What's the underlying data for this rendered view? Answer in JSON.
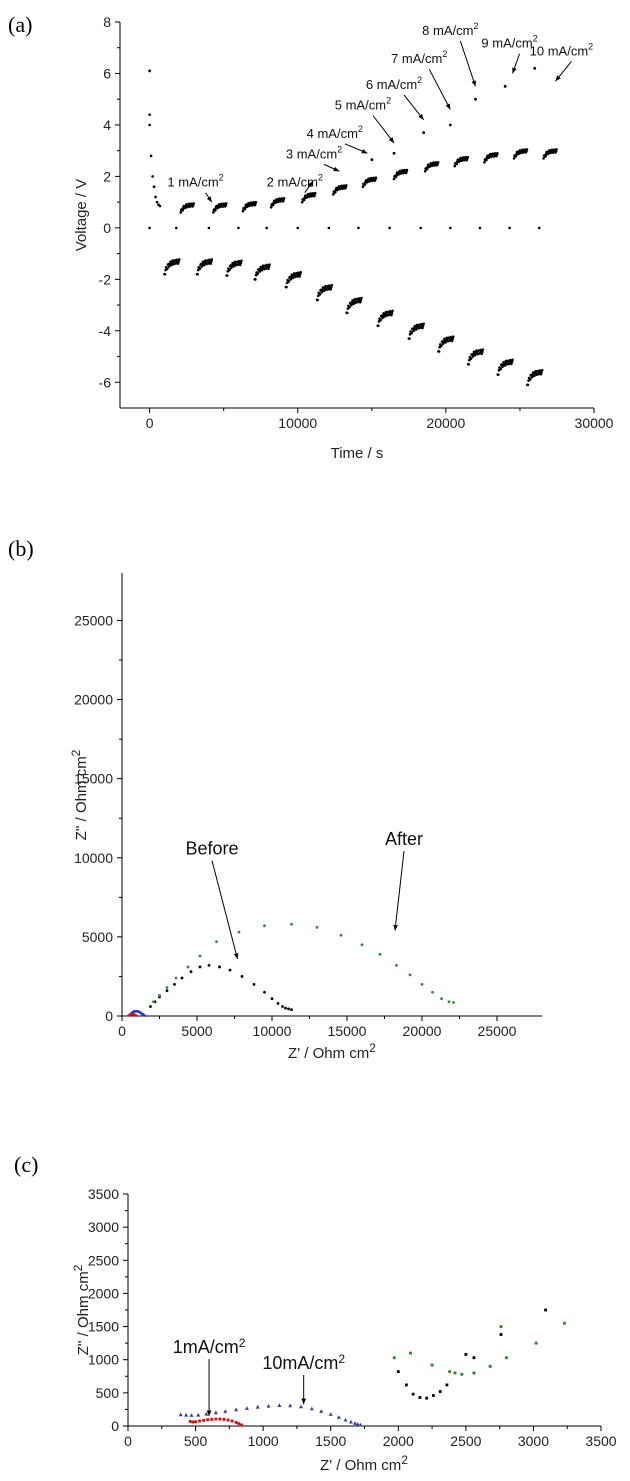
{
  "chart_data": [
    {
      "type": "scatter",
      "panel_label": "(a)",
      "xlabel": "Time / s",
      "ylabel": "Voltage / V",
      "xlim": [
        -2000,
        30000
      ],
      "ylim": [
        -7,
        8
      ],
      "xticks": [
        0,
        10000,
        20000,
        30000
      ],
      "yticks": [
        -6,
        -4,
        -2,
        0,
        2,
        4,
        6,
        8
      ],
      "grid": false,
      "color": "#000000",
      "steps": [
        {
          "label": "1 mA/cm",
          "start": 1000,
          "pos": 0.9,
          "neg": -1.3
        },
        {
          "label": "2 mA/cm",
          "start": 3200,
          "pos": 0.9,
          "neg": -1.3
        },
        {
          "label": "3 mA/cm",
          "start": 5200,
          "pos": 0.95,
          "neg": -1.35
        },
        {
          "label": "4 mA/cm",
          "start": 7100,
          "pos": 1.1,
          "neg": -1.5
        },
        {
          "label": "5 mA/cm",
          "start": 9200,
          "pos": 1.3,
          "neg": -1.8
        },
        {
          "label": "6 mA/cm",
          "start": 11300,
          "pos": 1.6,
          "neg": -2.3
        },
        {
          "label": "7 mA/cm",
          "start": 13300,
          "pos": 1.9,
          "neg": -2.8
        },
        {
          "label": "8 mA/cm",
          "start": 15400,
          "pos": 2.2,
          "neg": -3.3
        },
        {
          "label": "9 mA/cm",
          "start": 17500,
          "pos": 2.5,
          "neg": -3.8
        },
        {
          "label": "10 mA/cm",
          "start": 19500,
          "pos": 2.7,
          "neg": -4.3
        },
        {
          "label": "",
          "start": 21500,
          "pos": 2.85,
          "neg": -4.8
        },
        {
          "label": "",
          "start": 23500,
          "pos": 3.0,
          "neg": -5.2
        },
        {
          "label": "",
          "start": 25500,
          "pos": 3.0,
          "neg": -5.6
        }
      ],
      "peaks": [
        {
          "x": 0,
          "y": 6.1
        },
        {
          "x": 15000,
          "y": 2.65
        },
        {
          "x": 16500,
          "y": 2.9
        },
        {
          "x": 18500,
          "y": 3.7
        },
        {
          "x": 20300,
          "y": 4.0
        },
        {
          "x": 22000,
          "y": 5.0
        },
        {
          "x": 24000,
          "y": 5.5
        },
        {
          "x": 26000,
          "y": 6.2
        }
      ],
      "annotations": [
        {
          "text": "1 mA/cm",
          "x": 3100,
          "y": 1.6,
          "ax": 4200,
          "ay": 1.0
        },
        {
          "text": "2 mA/cm",
          "x": 9800,
          "y": 1.6,
          "ax": 11000,
          "ay": 1.8
        },
        {
          "text": "3 mA/cm",
          "x": 11100,
          "y": 2.7,
          "ax": 12800,
          "ay": 2.2
        },
        {
          "text": "4 mA/cm",
          "x": 12500,
          "y": 3.5,
          "ax": 14700,
          "ay": 2.9
        },
        {
          "text": "5 mA/cm",
          "x": 14400,
          "y": 4.6,
          "ax": 16500,
          "ay": 3.3
        },
        {
          "text": "6 mA/cm",
          "x": 16500,
          "y": 5.4,
          "ax": 18500,
          "ay": 4.2
        },
        {
          "text": "7 mA/cm",
          "x": 18200,
          "y": 6.4,
          "ax": 20300,
          "ay": 4.6
        },
        {
          "text": "8 mA/cm",
          "x": 20300,
          "y": 7.5,
          "ax": 22000,
          "ay": 5.5
        },
        {
          "text": "9 mA/cm",
          "x": 24300,
          "y": 7.0,
          "ax": 24500,
          "ay": 6.0
        },
        {
          "text": "10 mA/cm",
          "x": 27800,
          "y": 6.7,
          "ax": 27400,
          "ay": 5.7
        }
      ]
    },
    {
      "type": "scatter",
      "panel_label": "(b)",
      "xlabel": "Z' / Ohm cm",
      "ylabel": "Z'' / Ohm cm",
      "xlim": [
        0,
        28000
      ],
      "ylim": [
        0,
        28000
      ],
      "xticks": [
        0,
        5000,
        10000,
        15000,
        20000,
        25000
      ],
      "yticks": [
        0,
        5000,
        10000,
        15000,
        20000,
        25000
      ],
      "grid": false,
      "series": [
        {
          "name": "",
          "color": "#000000",
          "x": [
            1900,
            2200,
            2500,
            3000,
            3500,
            4000,
            4600,
            5200,
            5800,
            6500,
            7200,
            8000,
            8800,
            9500,
            10000,
            10400,
            10700,
            10900,
            11100,
            11300
          ],
          "y": [
            600,
            900,
            1200,
            1600,
            2000,
            2400,
            2800,
            3100,
            3200,
            3100,
            2900,
            2500,
            2000,
            1500,
            1100,
            800,
            600,
            500,
            450,
            400
          ]
        },
        {
          "name": "",
          "color": "#2e8b2e",
          "x": [
            2100,
            2500,
            3000,
            3600,
            4400,
            5200,
            6300,
            7800,
            9500,
            11300,
            13000,
            14600,
            16000,
            17200,
            18300,
            19200,
            20000,
            20700,
            21300,
            21800,
            22100
          ],
          "y": [
            900,
            1300,
            1800,
            2400,
            3100,
            3800,
            4700,
            5300,
            5700,
            5800,
            5600,
            5100,
            4500,
            3900,
            3200,
            2600,
            2000,
            1500,
            1100,
            900,
            850
          ]
        },
        {
          "name": "",
          "color": "#2040c0",
          "x": [
            500,
            600,
            700,
            800,
            900,
            1000,
            1100,
            1200,
            1300,
            1400,
            1500
          ],
          "y": [
            50,
            150,
            230,
            280,
            300,
            300,
            280,
            230,
            160,
            90,
            30
          ]
        },
        {
          "name": "",
          "color": "#e01010",
          "x": [
            450,
            550,
            650,
            750,
            850,
            950
          ],
          "y": [
            40,
            80,
            110,
            110,
            80,
            30
          ]
        }
      ],
      "annotations": [
        {
          "text": "Before",
          "x": 6000,
          "y": 10200,
          "ax": 7700,
          "ay": 3600
        },
        {
          "text": "After",
          "x": 18800,
          "y": 10800,
          "ax": 18200,
          "ay": 5400
        }
      ]
    },
    {
      "type": "scatter",
      "panel_label": "(c)",
      "xlabel": "Z' / Ohm cm",
      "ylabel": "Z'' / Ohm cm",
      "xlim": [
        0,
        3500
      ],
      "ylim": [
        0,
        3500
      ],
      "xticks": [
        0,
        500,
        1000,
        1500,
        2000,
        2500,
        3000,
        3500
      ],
      "yticks": [
        0,
        500,
        1000,
        1500,
        2000,
        2500,
        3000,
        3500
      ],
      "grid": false,
      "series": [
        {
          "name": "",
          "color": "#e01010",
          "marker": "circle",
          "x": [
            460,
            480,
            500,
            530,
            560,
            590,
            620,
            650,
            680,
            710,
            740,
            770,
            800,
            820,
            840
          ],
          "y": [
            70,
            60,
            65,
            75,
            85,
            95,
            100,
            105,
            105,
            100,
            90,
            75,
            55,
            35,
            15
          ]
        },
        {
          "name": "",
          "color": "#3040a0",
          "marker": "triangle",
          "x": [
            390,
            430,
            470,
            520,
            580,
            650,
            720,
            800,
            880,
            960,
            1040,
            1120,
            1200,
            1280,
            1360,
            1430,
            1500,
            1560,
            1610,
            1650,
            1680,
            1700,
            1720
          ],
          "y": [
            170,
            165,
            160,
            165,
            180,
            200,
            220,
            245,
            265,
            285,
            300,
            310,
            305,
            290,
            260,
            220,
            175,
            130,
            90,
            60,
            40,
            25,
            15
          ]
        },
        {
          "name": "",
          "color": "#000000",
          "marker": "square",
          "x": [
            2000,
            2060,
            2110,
            2160,
            2210,
            2260,
            2310,
            2360,
            2500,
            2560,
            2760,
            3090
          ],
          "y": [
            820,
            620,
            480,
            430,
            420,
            460,
            520,
            620,
            1080,
            1030,
            1380,
            1750
          ]
        },
        {
          "name": "",
          "color": "#2e8b2e",
          "marker": "circle",
          "x": [
            1970,
            2090,
            2250,
            2380,
            2420,
            2470,
            2560,
            2680,
            2760,
            2800,
            3020,
            3230
          ],
          "y": [
            1030,
            1100,
            920,
            820,
            800,
            780,
            800,
            900,
            1500,
            1030,
            1250,
            1550
          ]
        }
      ],
      "annotations": [
        {
          "text": "1mA/cm",
          "x": 600,
          "y": 1100,
          "ax": 600,
          "ay": 150
        },
        {
          "text": "10mA/cm",
          "x": 1300,
          "y": 860,
          "ax": 1300,
          "ay": 330
        }
      ]
    }
  ]
}
